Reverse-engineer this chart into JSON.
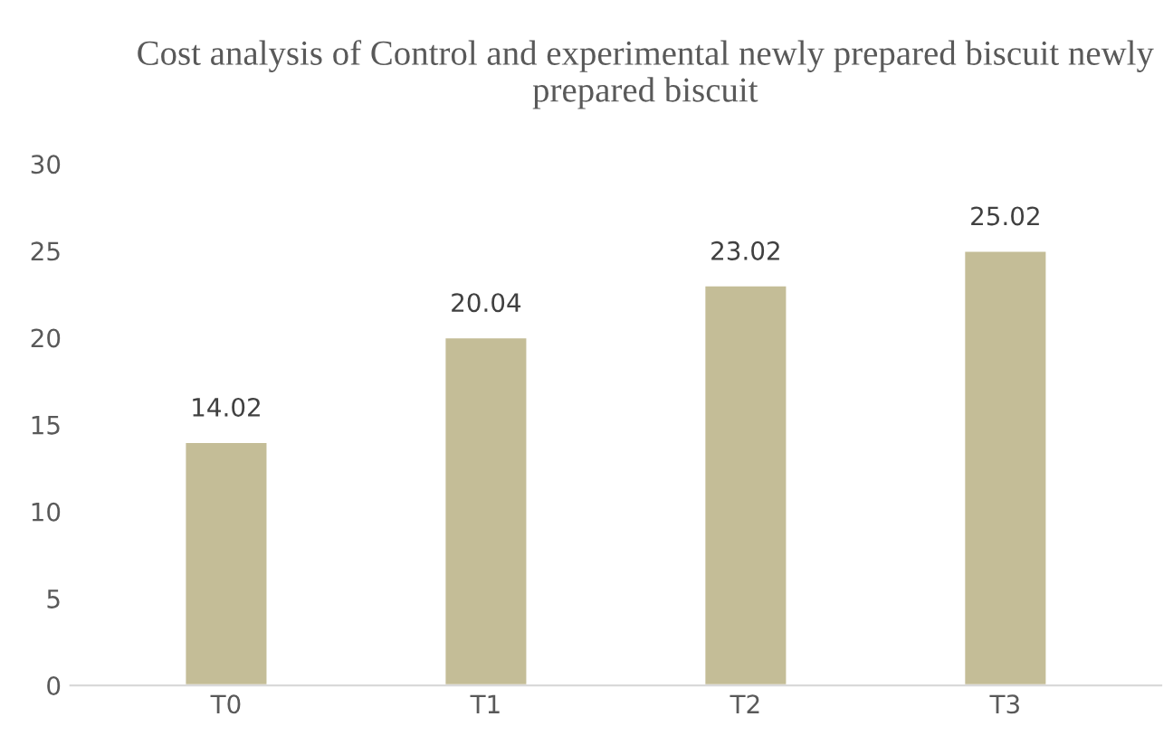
{
  "chart_data": {
    "type": "bar",
    "title": "Cost analysis of Control and experimental newly prepared biscuit newly prepared biscuit",
    "categories": [
      "T0",
      "T1",
      "T2",
      "T3"
    ],
    "values": [
      14.02,
      20.04,
      23.02,
      25.02
    ],
    "color": "#c4bd97",
    "ylim": [
      0,
      30
    ],
    "yticks": [
      0,
      5,
      10,
      15,
      20,
      25,
      30
    ],
    "data_labels": true,
    "grid": false,
    "legend": false
  }
}
